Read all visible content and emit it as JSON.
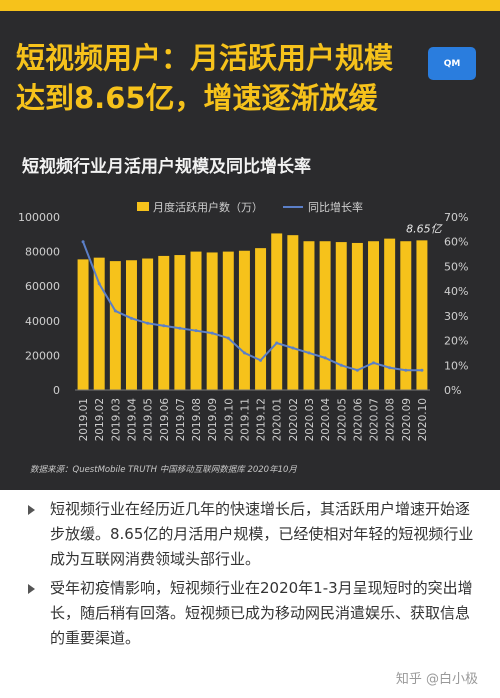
{
  "headline": {
    "line1": "短视频用户：月活跃用户规模",
    "line2": "达到8.65亿，增速逐渐放缓"
  },
  "logo": {
    "text": "QM"
  },
  "chart_title": "短视频行业月活用户规模及同比增长率",
  "colors": {
    "bar": "#f6c21b",
    "line": "#5b7fc8",
    "panel": "#2b2b2d",
    "accent": "#f6c21b"
  },
  "chart_data": {
    "type": "bar",
    "categories": [
      "2019.01",
      "2019.02",
      "2019.03",
      "2019.04",
      "2019.05",
      "2019.06",
      "2019.07",
      "2019.08",
      "2019.09",
      "2019.10",
      "2019.11",
      "2019.12",
      "2020.01",
      "2020.02",
      "2020.03",
      "2020.04",
      "2020.05",
      "2020.06",
      "2020.07",
      "2020.08",
      "2020.09",
      "2020.10"
    ],
    "series": [
      {
        "name": "月度活跃用户数（万）",
        "type": "bar",
        "axis": "left",
        "values": [
          75500,
          76500,
          74500,
          75000,
          76000,
          77500,
          78000,
          80000,
          79500,
          80000,
          80500,
          82000,
          90500,
          89500,
          86000,
          86000,
          85500,
          85000,
          86000,
          87500,
          86000,
          86500
        ]
      },
      {
        "name": "同比增长率",
        "type": "line",
        "axis": "right",
        "values": [
          60,
          43,
          32,
          29,
          27,
          26,
          25,
          24,
          23,
          21,
          15,
          12,
          19,
          17,
          15,
          13,
          10,
          8,
          11,
          9,
          8,
          8
        ]
      }
    ],
    "left_axis": {
      "min": 0,
      "max": 100000,
      "ticks": [
        "0",
        "20000",
        "40000",
        "60000",
        "80000",
        "100000"
      ]
    },
    "right_axis": {
      "min": 0,
      "max": 70,
      "ticks": [
        "0%",
        "10%",
        "20%",
        "30%",
        "40%",
        "50%",
        "60%",
        "70%"
      ]
    },
    "annotation": "8.65亿",
    "legend_position": "top-center",
    "grid": false
  },
  "source": "数据来源：QuestMobile TRUTH 中国移动互联网数据库 2020年10月",
  "bullets": [
    "短视频行业在经历近几年的快速增长后，其活跃用户增速开始逐步放缓。8.65亿的月活用户规模，已经使相对年轻的短视频行业成为互联网消费领域头部行业。",
    "受年初疫情影响，短视频行业在2020年1-3月呈现短时的突出增长，随后稍有回落。短视频已成为移动网民消遣娱乐、获取信息的重要渠道。"
  ],
  "watermark": "知乎 @白小极"
}
